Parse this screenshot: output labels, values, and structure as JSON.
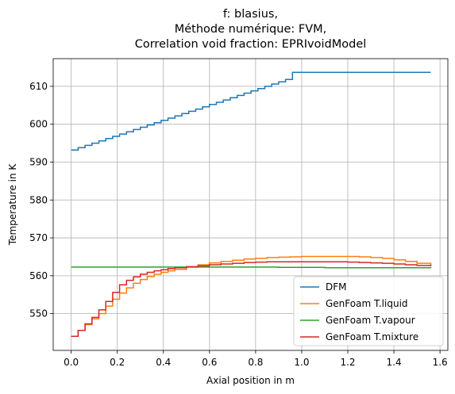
{
  "chart_data": {
    "type": "line",
    "step": true,
    "title": [
      "f: blasius,",
      "Méthode numérique: FVM,",
      "Correlation void fraction: EPRIvoidModel"
    ],
    "xlabel": "Axial position in m",
    "ylabel": "Temperature in K",
    "xlim": [
      -0.078,
      1.634
    ],
    "ylim": [
      540.3,
      617.3
    ],
    "xticks": [
      0.0,
      0.2,
      0.4,
      0.6,
      0.8,
      1.0,
      1.2,
      1.4,
      1.6
    ],
    "xtick_labels": [
      "0.0",
      "0.2",
      "0.4",
      "0.6",
      "0.8",
      "1.0",
      "1.2",
      "1.4",
      "1.6"
    ],
    "yticks": [
      550,
      560,
      570,
      580,
      590,
      600,
      610
    ],
    "ytick_labels": [
      "550",
      "560",
      "570",
      "580",
      "590",
      "600",
      "610"
    ],
    "grid": true,
    "legend_position": "lower-right",
    "series": [
      {
        "name": "DFM",
        "color": "#1f77b4",
        "x": [
          0.0,
          0.03,
          0.06,
          0.09,
          0.12,
          0.15,
          0.18,
          0.21,
          0.24,
          0.27,
          0.3,
          0.33,
          0.36,
          0.39,
          0.42,
          0.45,
          0.48,
          0.51,
          0.54,
          0.57,
          0.6,
          0.63,
          0.66,
          0.69,
          0.72,
          0.75,
          0.78,
          0.81,
          0.84,
          0.87,
          0.9,
          0.93,
          0.96,
          1.2,
          1.56
        ],
        "y": [
          593.2,
          593.8,
          594.4,
          595.0,
          595.6,
          596.2,
          596.8,
          597.4,
          598.0,
          598.6,
          599.2,
          599.8,
          600.4,
          601.0,
          601.6,
          602.2,
          602.8,
          603.4,
          604.0,
          604.6,
          605.2,
          605.8,
          606.4,
          607.0,
          607.6,
          608.2,
          608.8,
          609.4,
          610.0,
          610.6,
          611.2,
          611.8,
          613.7,
          613.7,
          613.7
        ]
      },
      {
        "name": "GenFoam T.liquid",
        "color": "#ff7f0e",
        "x": [
          0.0,
          0.03,
          0.06,
          0.09,
          0.12,
          0.15,
          0.18,
          0.21,
          0.24,
          0.27,
          0.3,
          0.33,
          0.36,
          0.39,
          0.42,
          0.45,
          0.5,
          0.55,
          0.6,
          0.65,
          0.7,
          0.75,
          0.8,
          0.85,
          0.9,
          0.95,
          1.0,
          1.05,
          1.1,
          1.15,
          1.2,
          1.25,
          1.3,
          1.35,
          1.4,
          1.45,
          1.5,
          1.56
        ],
        "y": [
          544.0,
          545.6,
          547.1,
          548.6,
          550.0,
          552.0,
          553.8,
          555.4,
          556.8,
          558.0,
          559.0,
          559.8,
          560.4,
          560.9,
          561.3,
          561.7,
          562.3,
          562.9,
          563.4,
          563.8,
          564.1,
          564.4,
          564.6,
          564.8,
          564.9,
          565.0,
          565.1,
          565.1,
          565.1,
          565.1,
          565.1,
          565.0,
          564.8,
          564.6,
          564.2,
          563.8,
          563.3,
          562.8
        ]
      },
      {
        "name": "GenFoam T.vapour",
        "color": "#2ca02c",
        "x": [
          0.0,
          0.5,
          0.9,
          1.1,
          1.56
        ],
        "y": [
          562.3,
          562.3,
          562.2,
          562.1,
          562.0
        ]
      },
      {
        "name": "GenFoam T.mixture",
        "color": "#d62728",
        "x": [
          0.0,
          0.03,
          0.06,
          0.09,
          0.12,
          0.15,
          0.18,
          0.21,
          0.24,
          0.27,
          0.3,
          0.33,
          0.36,
          0.39,
          0.42,
          0.45,
          0.5,
          0.55,
          0.6,
          0.65,
          0.7,
          0.75,
          0.8,
          0.85,
          0.9,
          0.95,
          1.0,
          1.05,
          1.1,
          1.15,
          1.2,
          1.25,
          1.3,
          1.35,
          1.4,
          1.45,
          1.5,
          1.56
        ],
        "y": [
          544.0,
          545.6,
          547.3,
          549.0,
          551.0,
          553.2,
          555.6,
          557.6,
          558.8,
          559.7,
          560.4,
          560.9,
          561.3,
          561.6,
          561.9,
          562.1,
          562.4,
          562.6,
          562.9,
          563.1,
          563.3,
          563.5,
          563.6,
          563.7,
          563.7,
          563.7,
          563.7,
          563.7,
          563.7,
          563.7,
          563.6,
          563.5,
          563.4,
          563.3,
          563.1,
          562.9,
          562.7,
          562.5
        ]
      }
    ]
  }
}
